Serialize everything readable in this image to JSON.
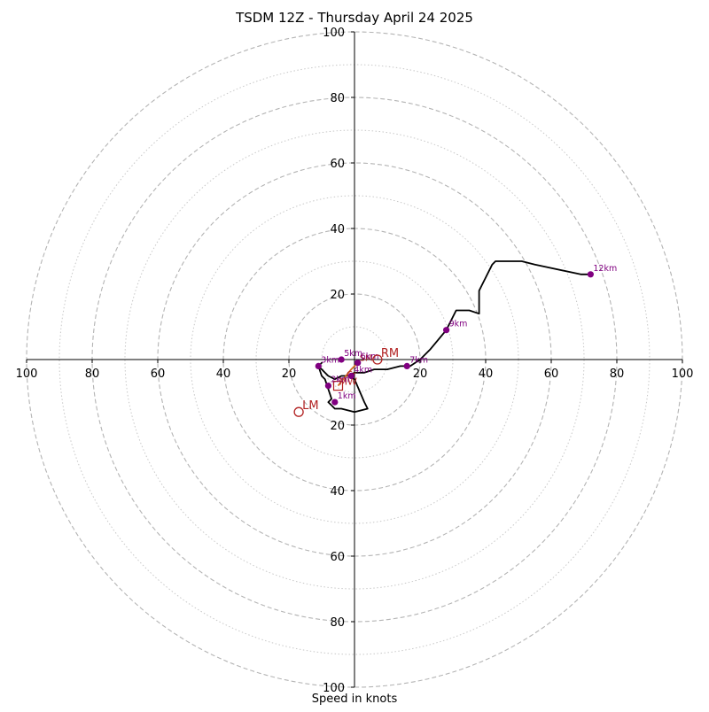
{
  "chart_data": {
    "type": "scatter",
    "title": "TSDM 12Z - Thursday April 24 2025",
    "xlabel": "Speed in knots",
    "ylabel": "",
    "xlim": [
      -100,
      100
    ],
    "ylim": [
      -100,
      100
    ],
    "grid": true,
    "ring_major": [
      20,
      40,
      60,
      80,
      100
    ],
    "ring_minor": [
      10,
      30,
      50,
      70,
      90
    ],
    "ticks": [
      {
        "value": 100,
        "label": "100"
      },
      {
        "value": 80,
        "label": "80"
      },
      {
        "value": 60,
        "label": "60"
      },
      {
        "value": 40,
        "label": "40"
      },
      {
        "value": 20,
        "label": "20"
      },
      {
        "value": -20,
        "label": "20"
      },
      {
        "value": -40,
        "label": "40"
      },
      {
        "value": -60,
        "label": "60"
      },
      {
        "value": -80,
        "label": "80"
      },
      {
        "value": -100,
        "label": "100"
      }
    ],
    "hodograph": {
      "color": "#000000",
      "points": [
        [
          -7,
          -14
        ],
        [
          -8,
          -13
        ],
        [
          -7,
          -12
        ],
        [
          -8,
          -9
        ],
        [
          -9,
          -6
        ],
        [
          -10,
          -5
        ],
        [
          -11,
          -2
        ],
        [
          -10,
          -1
        ],
        [
          -11,
          -2
        ],
        [
          -8,
          -5
        ],
        [
          -6,
          -6
        ],
        [
          -4,
          -5
        ],
        [
          -2,
          -5
        ],
        [
          0,
          -4
        ],
        [
          3,
          -4
        ],
        [
          6,
          -3
        ],
        [
          10,
          -3
        ],
        [
          14,
          -2
        ],
        [
          17,
          -2
        ],
        [
          20,
          0
        ],
        [
          23,
          3
        ],
        [
          28,
          9
        ],
        [
          31,
          15
        ],
        [
          35,
          15
        ],
        [
          38,
          14
        ],
        [
          38,
          18
        ],
        [
          38,
          21
        ],
        [
          39,
          23
        ],
        [
          40,
          25
        ],
        [
          42,
          29
        ],
        [
          43,
          30
        ],
        [
          49,
          30
        ],
        [
          51,
          30
        ],
        [
          55,
          29
        ],
        [
          69,
          26
        ],
        [
          72,
          26
        ]
      ],
      "lower_loop": [
        [
          -7,
          -14
        ],
        [
          -6,
          -15
        ],
        [
          -4,
          -15
        ],
        [
          0,
          -16
        ],
        [
          4,
          -15
        ],
        [
          3,
          -13
        ],
        [
          0,
          -6
        ],
        [
          -2,
          -5
        ]
      ]
    },
    "height_markers": {
      "color": "#800080",
      "points": [
        {
          "label": "1km",
          "u": -6,
          "v": -13
        },
        {
          "label": "2km",
          "u": -8,
          "v": -8
        },
        {
          "label": "3km",
          "u": -11,
          "v": -2
        },
        {
          "label": "4km",
          "u": -1,
          "v": -5
        },
        {
          "label": "5km",
          "u": -4,
          "v": 0
        },
        {
          "label": "6km",
          "u": 1,
          "v": -1
        },
        {
          "label": "7km",
          "u": 16,
          "v": -2
        },
        {
          "label": "9km",
          "u": 28,
          "v": 9
        },
        {
          "label": "12km",
          "u": 72,
          "v": 26
        }
      ]
    },
    "storm_motion": {
      "color": "#b22222",
      "rm": {
        "label": "RM",
        "u": 7,
        "v": 0
      },
      "lm": {
        "label": "LM",
        "u": -17,
        "v": -16
      },
      "mean": {
        "label": "MW",
        "u": -5,
        "v": -8
      },
      "shear_vector": [
        [
          -5,
          -8
        ],
        [
          -1,
          -3
        ],
        [
          1,
          -1
        ]
      ],
      "extra_labels": [
        {
          "label": "Cr",
          "u": -3,
          "v": -6
        },
        {
          "label": "SM",
          "u": 1,
          "v": -1
        }
      ]
    }
  }
}
